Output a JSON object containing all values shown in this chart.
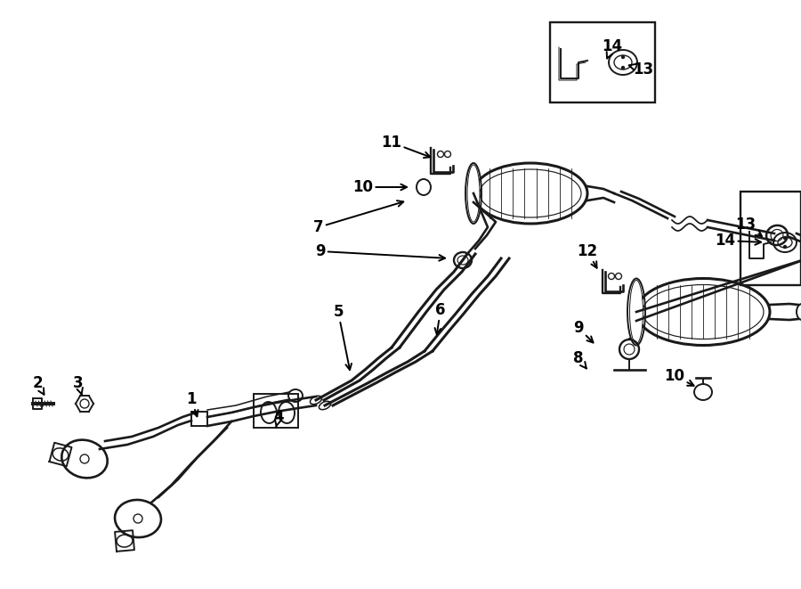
{
  "background_color": "#ffffff",
  "line_color": "#1a1a1a",
  "lw": 1.4,
  "fig_w": 9.0,
  "fig_h": 6.61,
  "dpi": 100
}
